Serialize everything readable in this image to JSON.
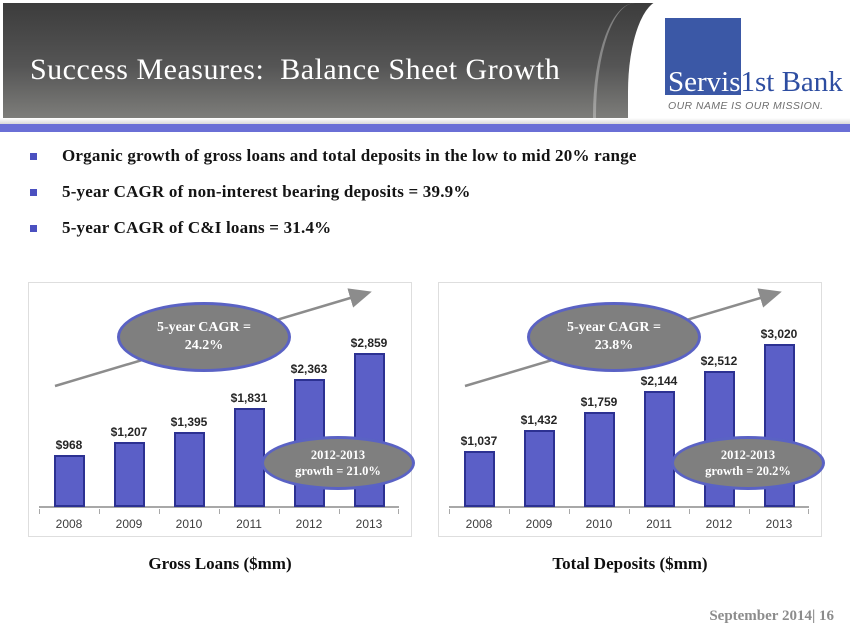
{
  "slide": {
    "title": "Success Measures:  Balance Sheet Growth",
    "footer": "September 2014| 16"
  },
  "logo": {
    "name_part1": "Servis",
    "name_part2": "1st Bank",
    "tagline": "OUR NAME IS OUR MISSION."
  },
  "bullets": [
    "Organic growth of gross loans and total deposits in the low to mid 20% range",
    "5-year CAGR of non-interest bearing deposits = 39.9%",
    "5-year CAGR of C&I loans = 31.4%"
  ],
  "colors": {
    "bar_fill": "#5b5fc7",
    "bar_border": "#2c3192",
    "callout_fill": "#7f7f7f",
    "callout_border": "#5a62c4",
    "accent_bar": "#6a6fd6",
    "logo_blue": "#3b58a6",
    "header_top": "#3c3c3c",
    "header_bottom": "#7d7d7a"
  },
  "chart_data": [
    {
      "type": "bar",
      "title": "Gross Loans ($mm)",
      "xlabel": "",
      "ylabel": "$mm",
      "ylim": [
        0,
        3100
      ],
      "grid": false,
      "data_labels": true,
      "categories": [
        "2008",
        "2009",
        "2010",
        "2011",
        "2012",
        "2013"
      ],
      "values": [
        968,
        1207,
        1395,
        1831,
        2363,
        2859
      ],
      "labels": [
        "$968",
        "$1,207",
        "$1,395",
        "$1,831",
        "$2,363",
        "$2,859"
      ],
      "callout_cagr": {
        "line1": "5-year CAGR =",
        "line2": "24.2%"
      },
      "callout_growth": {
        "line1": "2012-2013",
        "line2": "growth = 21.0%"
      }
    },
    {
      "type": "bar",
      "title": "Total Deposits ($mm)",
      "xlabel": "",
      "ylabel": "$mm",
      "ylim": [
        0,
        3100
      ],
      "grid": false,
      "data_labels": true,
      "categories": [
        "2008",
        "2009",
        "2010",
        "2011",
        "2012",
        "2013"
      ],
      "values": [
        1037,
        1432,
        1759,
        2144,
        2512,
        3020
      ],
      "labels": [
        "$1,037",
        "$1,432",
        "$1,759",
        "$2,144",
        "$2,512",
        "$3,020"
      ],
      "callout_cagr": {
        "line1": "5-year CAGR =",
        "line2": "23.8%"
      },
      "callout_growth": {
        "line1": "2012-2013",
        "line2": "growth = 20.2%"
      }
    }
  ]
}
